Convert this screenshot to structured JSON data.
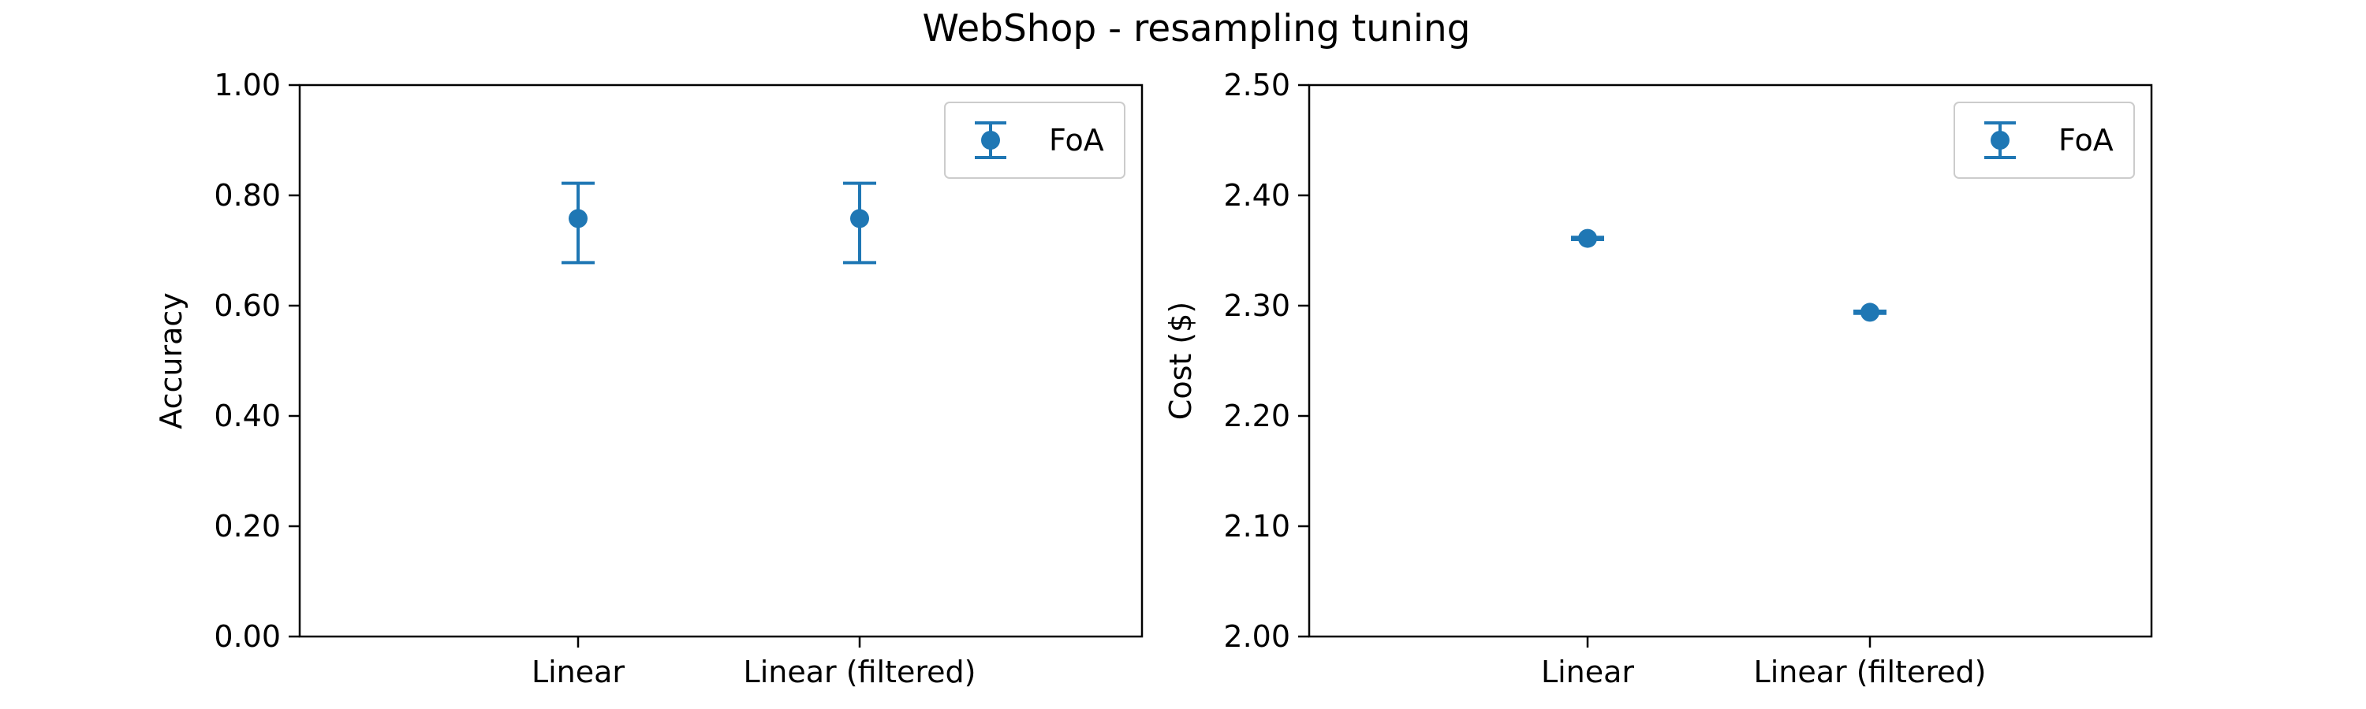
{
  "figure": {
    "title": "WebShop - resampling tuning"
  },
  "chart_data": [
    {
      "type": "scatter",
      "variant": "errorbar",
      "categories": [
        "Linear",
        "Linear (filtered)"
      ],
      "xlabel": "",
      "ylabel": "Accuracy",
      "ylim": [
        0.0,
        1.0
      ],
      "yticks": [
        0.0,
        0.2,
        0.4,
        0.6,
        0.8,
        1.0
      ],
      "ytick_labels": [
        "0.00",
        "0.20",
        "0.40",
        "0.60",
        "0.80",
        "1.00"
      ],
      "grid": false,
      "legend": "top-right",
      "series": [
        {
          "name": "FoA",
          "color": "#1f77b4",
          "values": [
            0.758,
            0.758
          ],
          "err_low": [
            0.678,
            0.678
          ],
          "err_high": [
            0.822,
            0.822
          ]
        }
      ]
    },
    {
      "type": "scatter",
      "variant": "errorbar",
      "categories": [
        "Linear",
        "Linear (filtered)"
      ],
      "xlabel": "",
      "ylabel": "Cost ($)",
      "ylim": [
        2.0,
        2.5
      ],
      "yticks": [
        2.0,
        2.1,
        2.2,
        2.3,
        2.4,
        2.5
      ],
      "ytick_labels": [
        "2.00",
        "2.10",
        "2.20",
        "2.30",
        "2.40",
        "2.50"
      ],
      "grid": false,
      "legend": "top-right",
      "series": [
        {
          "name": "FoA",
          "color": "#1f77b4",
          "values": [
            2.361,
            2.294
          ],
          "err_low": [
            2.36,
            2.293
          ],
          "err_high": [
            2.362,
            2.295
          ]
        }
      ]
    }
  ]
}
